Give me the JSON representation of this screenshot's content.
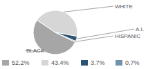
{
  "chart_data": {
    "type": "pie",
    "categories": [
      "BLACK",
      "WHITE",
      "A.I.",
      "HISPANIC"
    ],
    "values": [
      52.2,
      43.4,
      3.7,
      0.7
    ],
    "value_labels": [
      "52.2%",
      "43.4%",
      "3.7%",
      "0.7%"
    ],
    "colors": [
      "#a6a6a6",
      "#d6d6d6",
      "#2b5474",
      "#7092ad"
    ]
  }
}
